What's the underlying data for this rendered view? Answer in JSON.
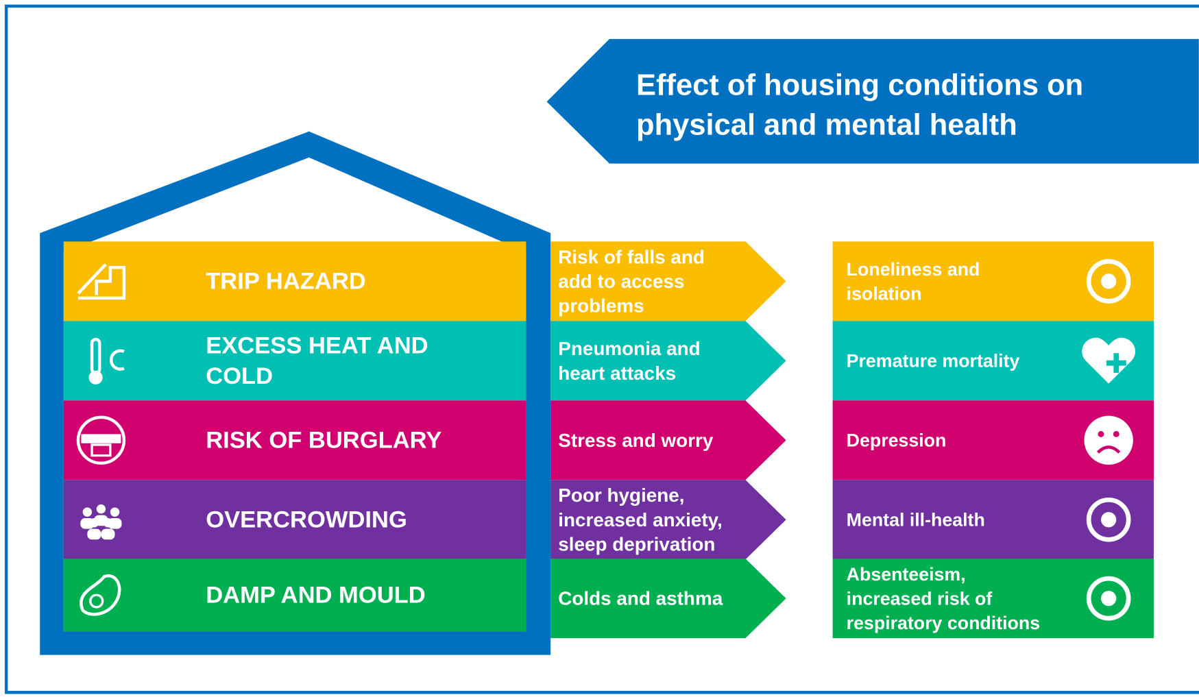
{
  "title": [
    "Effect of housing conditions on",
    "physical and mental health"
  ],
  "rows": [
    {
      "color": "#fbbd00",
      "hazard": [
        "TRIP HAZARD"
      ],
      "effect": [
        "Risk of falls and",
        "add to access",
        "problems"
      ],
      "outcome": [
        "Loneliness and",
        "isolation"
      ]
    },
    {
      "color": "#00bfb3",
      "hazard": [
        "EXCESS HEAT AND",
        "COLD"
      ],
      "effect": [
        "Pneumonia and",
        "heart attacks"
      ],
      "outcome": [
        "Premature mortality"
      ]
    },
    {
      "color": "#d1006f",
      "hazard": [
        "RISK OF BURGLARY"
      ],
      "effect": [
        "Stress and worry"
      ],
      "outcome": [
        "Depression"
      ]
    },
    {
      "color": "#7030a0",
      "hazard": [
        "OVERCROWDING"
      ],
      "effect": [
        "Poor hygiene,",
        "increased anxiety,",
        "sleep deprivation"
      ],
      "outcome": [
        "Mental ill-health"
      ]
    },
    {
      "color": "#00b050",
      "hazard": [
        "DAMP AND MOULD"
      ],
      "effect": [
        "Colds and asthma"
      ],
      "outcome": [
        "Absenteeism,",
        "increased risk of",
        "respiratory conditions"
      ]
    }
  ]
}
